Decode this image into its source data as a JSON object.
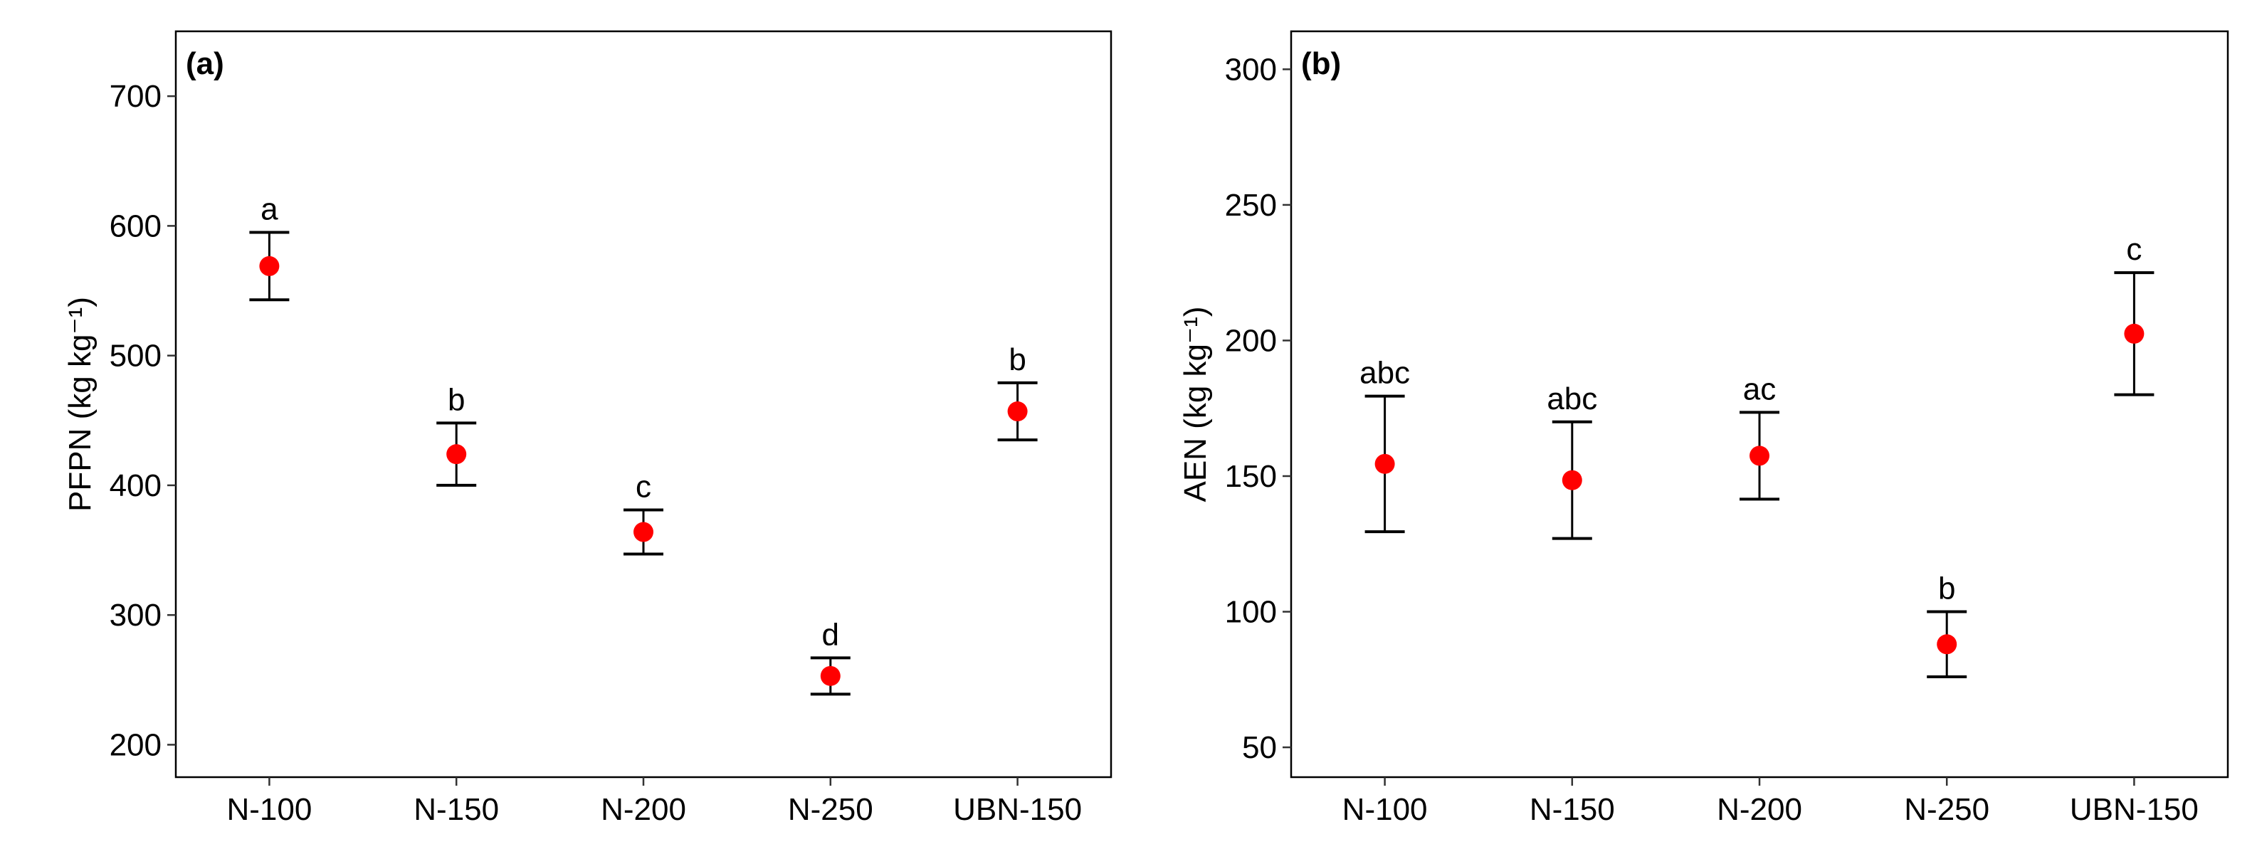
{
  "chart_data": [
    {
      "type": "errorbar",
      "panel_label": "(a)",
      "ylabel": "PFPN (kg kg⁻¹)",
      "categories": [
        "N-100",
        "N-150",
        "N-200",
        "N-250",
        "UBN-150"
      ],
      "values": [
        569,
        424,
        364,
        253,
        457
      ],
      "errors": [
        26,
        24,
        17,
        14,
        22
      ],
      "letters": [
        "a",
        "b",
        "c",
        "d",
        "b"
      ],
      "color": "#ff0000",
      "bar_color": "#000000",
      "ylim": [
        175,
        750
      ],
      "yticks": [
        200,
        300,
        400,
        500,
        600,
        700
      ]
    },
    {
      "type": "errorbar",
      "panel_label": "(b)",
      "ylabel": "AEN (kg kg⁻¹)",
      "categories": [
        "N-100",
        "N-150",
        "N-200",
        "N-250",
        "UBN-150"
      ],
      "values": [
        154.5,
        148.5,
        157.5,
        88,
        202.5
      ],
      "errors": [
        25,
        21.5,
        16,
        12,
        22.5
      ],
      "letters": [
        "abc",
        "abc",
        "ac",
        "b",
        "c"
      ],
      "color": "#ff0000",
      "bar_color": "#000000",
      "ylim": [
        39,
        314
      ],
      "yticks": [
        50,
        100,
        150,
        200,
        250,
        300
      ]
    }
  ]
}
